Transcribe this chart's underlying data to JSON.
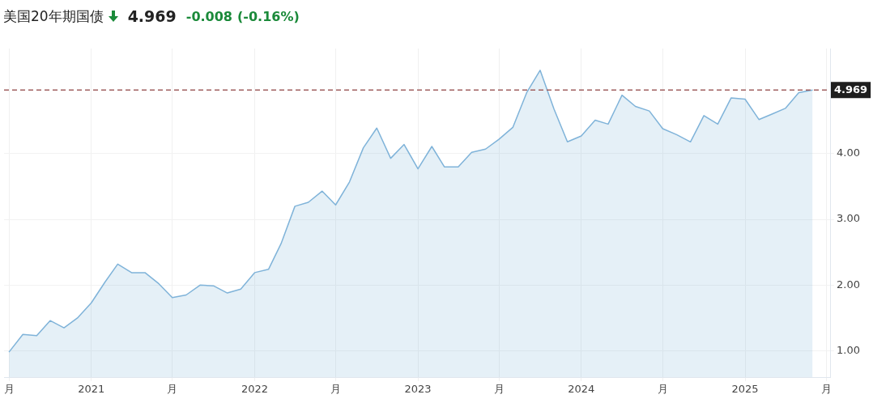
{
  "chart_data": {
    "type": "area",
    "title": "美国20年期国债",
    "annotations": [
      "4.969",
      "-0.008",
      "(-0.16%)"
    ],
    "x": [
      "2020-07",
      "2020-08",
      "2020-09",
      "2020-10",
      "2020-11",
      "2020-12",
      "2021-01",
      "2021-02",
      "2021-03",
      "2021-04",
      "2021-05",
      "2021-06",
      "2021-07",
      "2021-08",
      "2021-09",
      "2021-10",
      "2021-11",
      "2021-12",
      "2022-01",
      "2022-02",
      "2022-03",
      "2022-04",
      "2022-05",
      "2022-06",
      "2022-07",
      "2022-08",
      "2022-09",
      "2022-10",
      "2022-11",
      "2022-12",
      "2023-01",
      "2023-02",
      "2023-03",
      "2023-04",
      "2023-05",
      "2023-06",
      "2023-07",
      "2023-08",
      "2023-09",
      "2023-10",
      "2023-11",
      "2023-12",
      "2024-01",
      "2024-02",
      "2024-03",
      "2024-04",
      "2024-05",
      "2024-06",
      "2024-07",
      "2024-08",
      "2024-09",
      "2024-10",
      "2024-11",
      "2024-12",
      "2025-01",
      "2025-02",
      "2025-03",
      "2025-04",
      "2025-05",
      "2025-06"
    ],
    "series": [
      {
        "color": "#7fb3d9",
        "values": [
          0.98,
          1.25,
          1.23,
          1.46,
          1.35,
          1.5,
          1.73,
          2.05,
          2.32,
          2.19,
          2.19,
          2.02,
          1.81,
          1.85,
          2.0,
          1.99,
          1.88,
          1.94,
          2.19,
          2.24,
          2.63,
          3.2,
          3.26,
          3.43,
          3.22,
          3.57,
          4.09,
          4.39,
          3.93,
          4.14,
          3.77,
          4.11,
          3.8,
          3.8,
          4.02,
          4.07,
          4.22,
          4.4,
          4.93,
          5.27,
          4.68,
          4.18,
          4.27,
          4.51,
          4.45,
          4.89,
          4.72,
          4.65,
          4.38,
          4.29,
          4.18,
          4.58,
          4.45,
          4.85,
          4.83,
          4.52,
          4.6,
          4.69,
          4.93,
          4.97
        ]
      }
    ],
    "xlim": [
      "2020-06-20",
      "2025-07-10"
    ],
    "xticks": [
      {
        "value": "2020-07",
        "label": "月"
      },
      {
        "value": "2021-01",
        "label": "2021"
      },
      {
        "value": "2021-07",
        "label": "月"
      },
      {
        "value": "2022-01",
        "label": "2022"
      },
      {
        "value": "2022-07",
        "label": "月"
      },
      {
        "value": "2023-01",
        "label": "2023"
      },
      {
        "value": "2023-07",
        "label": "月"
      },
      {
        "value": "2024-01",
        "label": "2024"
      },
      {
        "value": "2024-07",
        "label": "月"
      },
      {
        "value": "2025-01",
        "label": "2025"
      },
      {
        "value": "2025-07",
        "label": "月"
      }
    ],
    "ylim": [
      0.6,
      5.6
    ],
    "yticks": [
      {
        "value": 1,
        "label": "1.00"
      },
      {
        "value": 2,
        "label": "2.00"
      },
      {
        "value": 3,
        "label": "3.00"
      },
      {
        "value": 4,
        "label": "4.00"
      }
    ],
    "ref_lines": [
      {
        "axis": "y",
        "value": 4.969,
        "label": "4.969",
        "color": "#a06060",
        "line_style": "dashed"
      }
    ],
    "grid": true,
    "legend": false,
    "marker": "none",
    "line_style": "solid"
  }
}
